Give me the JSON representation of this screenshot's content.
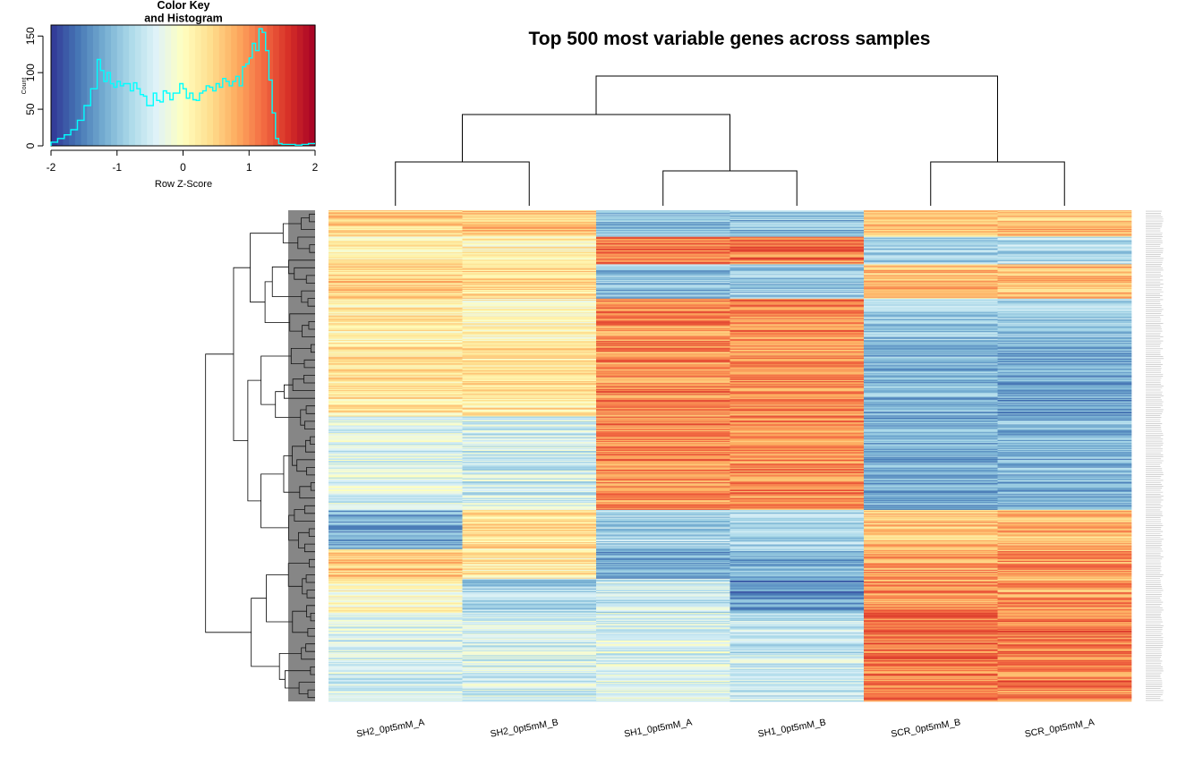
{
  "chart_data": [
    {
      "type": "heatmap",
      "title": "Top 500 most variable genes across samples",
      "columns": [
        "SH2_0pt5mM_A",
        "SH2_0pt5mM_B",
        "SH1_0pt5mM_A",
        "SH1_0pt5mM_B",
        "SCR_0pt5mM_B",
        "SCR_0pt5mM_A"
      ],
      "n_rows": 500,
      "row_labels_legible": false,
      "zlim": [
        -2,
        2
      ],
      "colormap": [
        "#313695",
        "#4575b4",
        "#74add1",
        "#abd9e9",
        "#e0f3f8",
        "#ffffbf",
        "#fee090",
        "#fdae61",
        "#f46d43",
        "#d73027",
        "#a50026"
      ],
      "column_dendrogram": "((SH2_0pt5mM_A,SH2_0pt5mM_B),(SH1_0pt5mM_A,SH1_0pt5mM_B)),(SCR_0pt5mM_B,SCR_0pt5mM_A)",
      "row_dendrogram": true,
      "row_blocks_approx": [
        {
          "rows": [
            0,
            27
          ],
          "z": [
            0.5,
            0.6,
            -1.0,
            -1.0,
            0.6,
            0.6
          ]
        },
        {
          "rows": [
            27,
            55
          ],
          "z": [
            0.1,
            0.1,
            1.1,
            1.1,
            -0.8,
            -0.8
          ]
        },
        {
          "rows": [
            55,
            90
          ],
          "z": [
            0.5,
            0.4,
            -1.0,
            -0.9,
            0.7,
            0.7
          ]
        },
        {
          "rows": [
            90,
            135
          ],
          "z": [
            0.2,
            0.1,
            1.0,
            1.0,
            -0.9,
            -0.9
          ]
        },
        {
          "rows": [
            135,
            210
          ],
          "z": [
            0.3,
            0.3,
            1.0,
            1.0,
            -1.1,
            -1.2
          ]
        },
        {
          "rows": [
            210,
            305
          ],
          "z": [
            -0.4,
            -0.5,
            1.0,
            1.0,
            -1.2,
            -1.1
          ]
        },
        {
          "rows": [
            305,
            345
          ],
          "z": [
            -1.2,
            0.4,
            -0.8,
            -0.8,
            0.6,
            0.7
          ]
        },
        {
          "rows": [
            345,
            375
          ],
          "z": [
            0.6,
            0.2,
            -1.2,
            -1.1,
            0.9,
            0.9
          ]
        },
        {
          "rows": [
            375,
            410
          ],
          "z": [
            0.0,
            -0.8,
            -0.6,
            -1.4,
            0.9,
            0.9
          ]
        },
        {
          "rows": [
            410,
            500
          ],
          "z": [
            -0.5,
            -0.5,
            -0.4,
            -0.6,
            1.1,
            1.1
          ]
        }
      ]
    },
    {
      "type": "histogram",
      "title": "Color Key\nand Histogram",
      "xlabel": "Row Z-Score",
      "ylabel": "Count",
      "xlim": [
        -2,
        2
      ],
      "ylim": [
        0,
        165
      ],
      "xticks": [
        "-2",
        "-1",
        "0",
        "1",
        "2"
      ],
      "yticks": [
        "0",
        "50",
        "100",
        "150"
      ],
      "line_color": "#00ffff",
      "bin_edges": [
        -2.0,
        -1.9,
        -1.8,
        -1.7,
        -1.6,
        -1.5,
        -1.4,
        -1.3,
        -1.25,
        -1.2,
        -1.15,
        -1.1,
        -1.05,
        -1.0,
        -0.95,
        -0.9,
        -0.85,
        -0.8,
        -0.75,
        -0.7,
        -0.65,
        -0.6,
        -0.55,
        -0.5,
        -0.45,
        -0.4,
        -0.35,
        -0.3,
        -0.25,
        -0.2,
        -0.15,
        -0.1,
        -0.05,
        0.0,
        0.05,
        0.1,
        0.15,
        0.2,
        0.25,
        0.3,
        0.35,
        0.4,
        0.45,
        0.5,
        0.55,
        0.6,
        0.65,
        0.7,
        0.75,
        0.8,
        0.85,
        0.9,
        0.95,
        1.0,
        1.05,
        1.1,
        1.15,
        1.2,
        1.25,
        1.3,
        1.35,
        1.4,
        1.45,
        1.5,
        1.6,
        1.7,
        1.8,
        1.9,
        2.0
      ],
      "counts": [
        5,
        10,
        15,
        22,
        35,
        55,
        78,
        118,
        103,
        88,
        100,
        85,
        80,
        88,
        82,
        85,
        85,
        75,
        86,
        78,
        70,
        68,
        55,
        55,
        72,
        62,
        60,
        75,
        72,
        63,
        72,
        72,
        85,
        78,
        65,
        72,
        63,
        62,
        72,
        75,
        82,
        80,
        75,
        85,
        80,
        92,
        88,
        82,
        88,
        95,
        82,
        108,
        112,
        120,
        140,
        130,
        160,
        155,
        130,
        90,
        45,
        10,
        3,
        2,
        2,
        1,
        2,
        3
      ]
    }
  ]
}
